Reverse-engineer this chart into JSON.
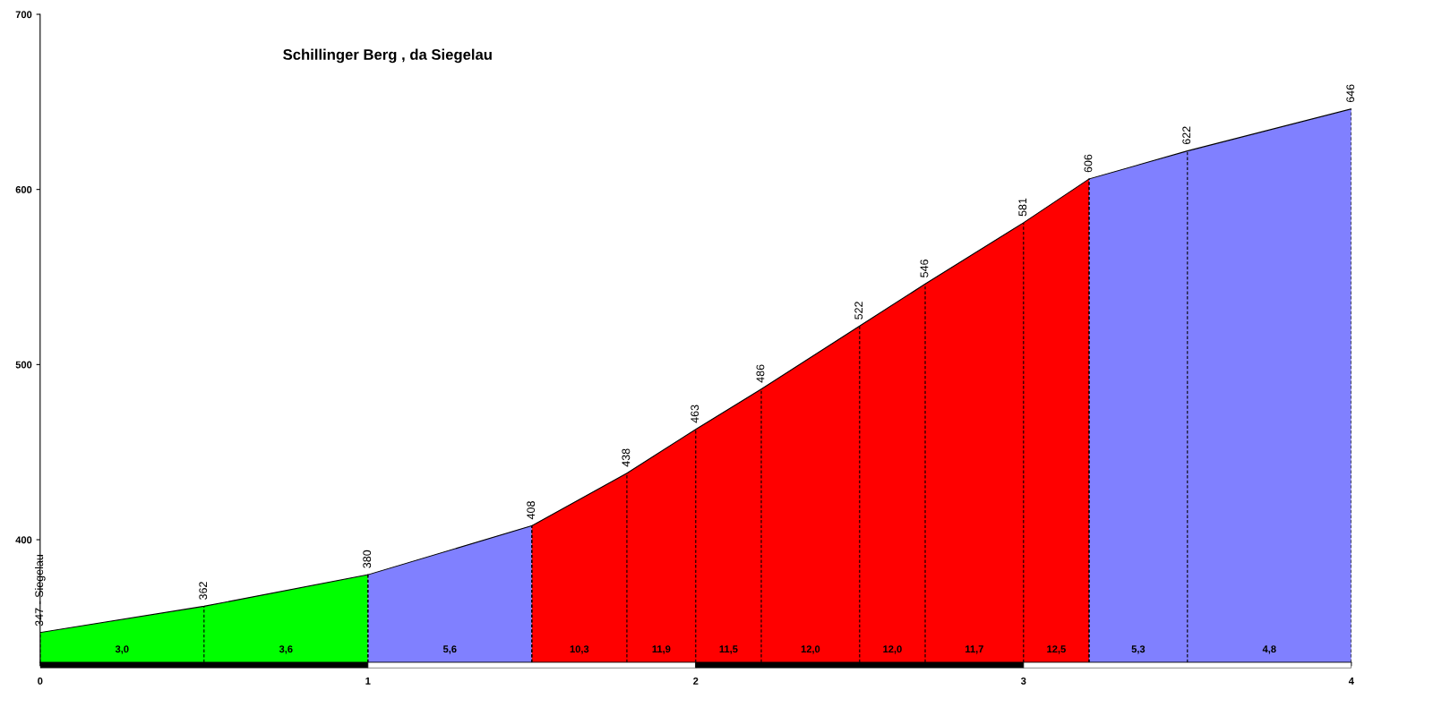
{
  "chart_data": {
    "type": "area",
    "title": "Schillinger Berg , da Siegelau",
    "series": [
      {
        "color": "#00ff00",
        "x": [
          0,
          0.5,
          1
        ],
        "values": [
          347,
          362,
          380
        ],
        "value_labels": [
          "347 - Siegelau",
          "362",
          "380"
        ]
      },
      {
        "color": "#8080ff",
        "x": [
          1,
          1.5
        ],
        "values": [
          380,
          408
        ],
        "value_labels": [
          null,
          "408"
        ]
      },
      {
        "color": "#ff0000",
        "x": [
          1.5,
          1.79,
          2,
          2.2,
          2.5,
          2.7,
          3,
          3.2
        ],
        "values": [
          408,
          438,
          463,
          486,
          522,
          546,
          581,
          606
        ],
        "value_labels": [
          null,
          "438",
          "463",
          "486",
          "522",
          "546",
          "581",
          "606"
        ]
      },
      {
        "color": "#8080ff",
        "x": [
          3.2,
          3.5,
          4
        ],
        "values": [
          606,
          622,
          646
        ],
        "value_labels": [
          null,
          "622",
          "646"
        ]
      }
    ],
    "xlim": [
      0,
      4
    ],
    "xticks": [
      0,
      1,
      2,
      3,
      4
    ],
    "ylim": [
      330,
      700
    ],
    "yticks": [
      400,
      500,
      600,
      700
    ],
    "grid": false,
    "legend": false,
    "annotations": [
      "3,0",
      "3,6",
      "5,6",
      "10,3",
      "11,9",
      "11,5",
      "12,0",
      "12,0",
      "11,7",
      "12,5",
      "5,3",
      "4,8"
    ]
  }
}
